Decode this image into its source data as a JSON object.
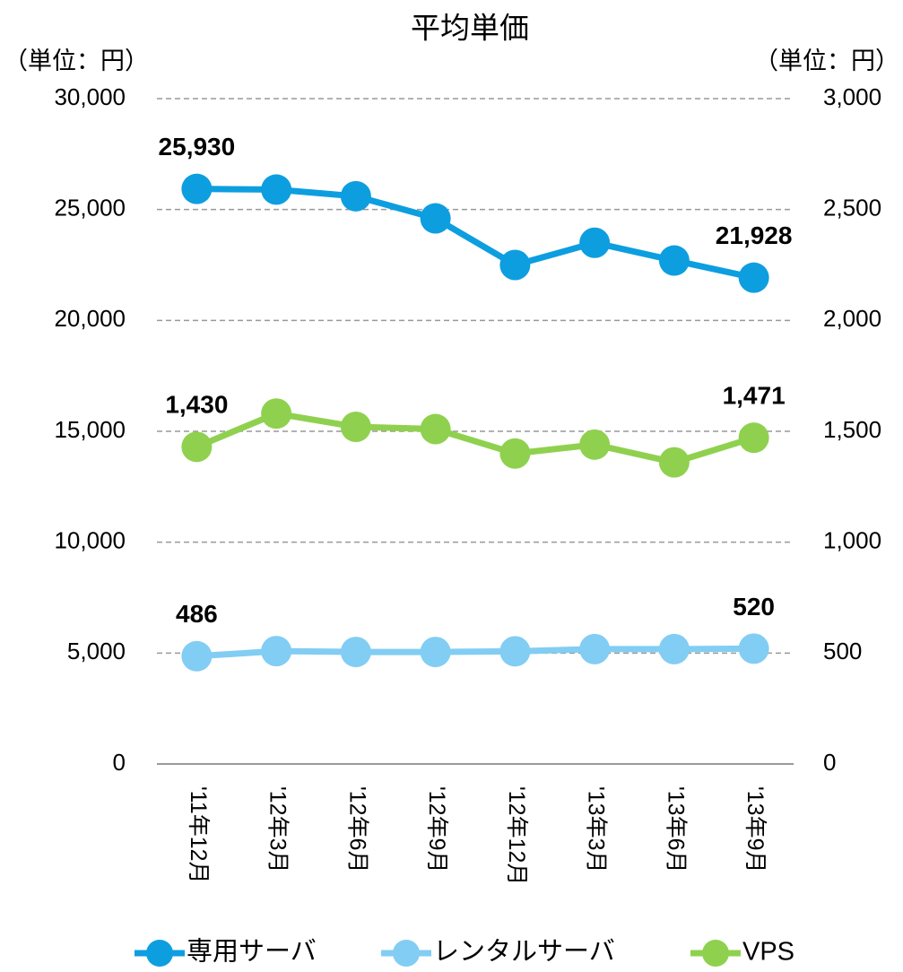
{
  "chart_data": {
    "type": "line",
    "title": "平均単価",
    "y_unit_label": "（単位：円）",
    "y2_unit_label": "（単位：円）",
    "categories": [
      "'11年12月",
      "'12年3月",
      "'12年6月",
      "'12年9月",
      "'12年12月",
      "'13年3月",
      "'13年6月",
      "'13年9月"
    ],
    "series": [
      {
        "name": "専用サーバ",
        "color": "#0d9ee0",
        "values": [
          25930,
          25900,
          25600,
          24600,
          22500,
          23500,
          22700,
          21928
        ],
        "value_labels": [
          "25,930",
          null,
          null,
          null,
          null,
          null,
          null,
          "21,928"
        ]
      },
      {
        "name": "レンタルサーバ",
        "color": "#82cdf3",
        "axis": "y2",
        "values": [
          486,
          509,
          505,
          505,
          508,
          518,
          518,
          520
        ],
        "value_labels": [
          "486",
          null,
          null,
          null,
          null,
          null,
          null,
          "520"
        ]
      },
      {
        "name": "VPS",
        "color": "#8fd14f",
        "axis": "y2",
        "values": [
          1430,
          1580,
          1520,
          1510,
          1400,
          1440,
          1360,
          1471
        ],
        "value_labels": [
          "1,430",
          null,
          null,
          null,
          null,
          null,
          null,
          "1,471"
        ]
      }
    ],
    "ylim": [
      0,
      30000
    ],
    "yticks": [
      0,
      {
        "value": 5000,
        "label": "5,000"
      },
      {
        "value": 10000,
        "label": "10,000"
      },
      {
        "value": 15000,
        "label": "15,000"
      },
      {
        "value": 20000,
        "label": "20,000"
      },
      {
        "value": 25000,
        "label": "25,000"
      },
      {
        "value": 30000,
        "label": "30,000"
      }
    ],
    "y2lim": [
      0,
      3000
    ],
    "y2ticks": [
      0,
      500,
      {
        "value": 1000,
        "label": "1,000"
      },
      {
        "value": 1500,
        "label": "1,500"
      },
      {
        "value": 2000,
        "label": "2,000"
      },
      {
        "value": 2500,
        "label": "2,500"
      },
      {
        "value": 3000,
        "label": "3,000"
      }
    ],
    "grid": true,
    "legend": "bottom"
  }
}
